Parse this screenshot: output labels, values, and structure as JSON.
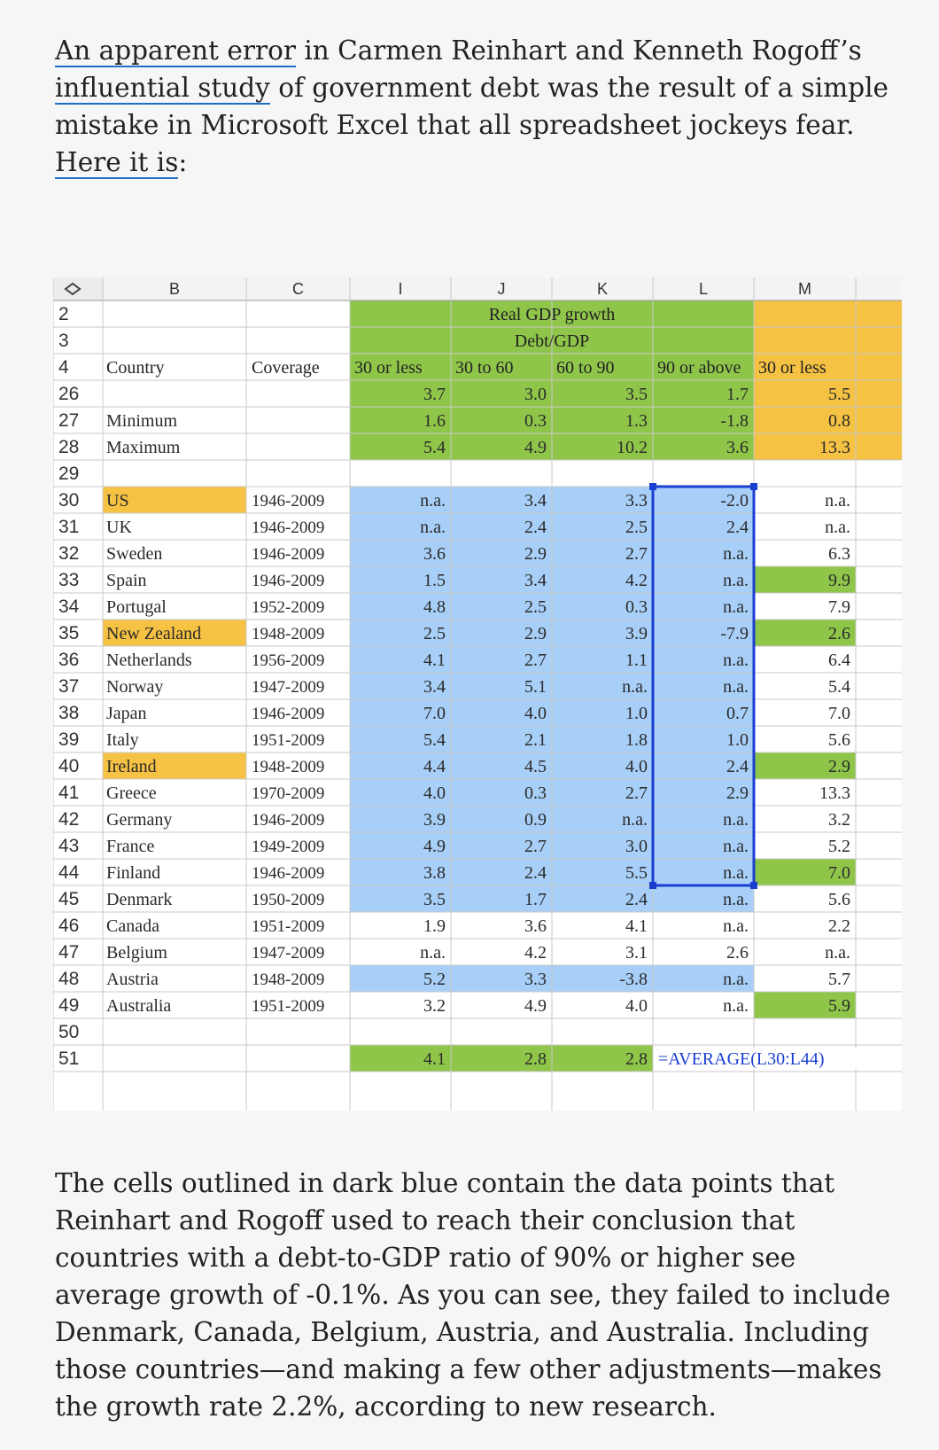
{
  "intro": {
    "link1": "An apparent error",
    "text1": " in Carmen Reinhart and Kenneth Rogoff’s ",
    "link2": "influential study",
    "text2": " of government debt was the result of a simple mistake in Microsoft Excel that all spreadsheet jockeys fear. ",
    "link3": "Here it is",
    "text3": ":"
  },
  "spreadsheet": {
    "column_headers": [
      "B",
      "C",
      "I",
      "J",
      "K",
      "L",
      "M"
    ],
    "title_line1": "Real GDP growth",
    "title_line2": "Debt/GDP",
    "header_row": {
      "row_num": "4",
      "country": "Country",
      "coverage": "Coverage",
      "buckets": [
        "30 or less",
        "30 to 60",
        "60 to 90",
        "90 or above",
        "30 or less"
      ]
    },
    "summary_rows": [
      {
        "row_num": "26",
        "label": "",
        "values": [
          "3.7",
          "3.0",
          "3.5",
          "1.7",
          "5.5"
        ]
      },
      {
        "row_num": "27",
        "label": "Minimum",
        "values": [
          "1.6",
          "0.3",
          "1.3",
          "-1.8",
          "0.8"
        ]
      },
      {
        "row_num": "28",
        "label": "Maximum",
        "values": [
          "5.4",
          "4.9",
          "10.2",
          "3.6",
          "13.3"
        ]
      }
    ],
    "country_rows": [
      {
        "row_num": "30",
        "country": "US",
        "coverage": "1946-2009",
        "values": [
          "n.a.",
          "3.4",
          "3.3",
          "-2.0",
          "n.a."
        ]
      },
      {
        "row_num": "31",
        "country": "UK",
        "coverage": "1946-2009",
        "values": [
          "n.a.",
          "2.4",
          "2.5",
          "2.4",
          "n.a."
        ]
      },
      {
        "row_num": "32",
        "country": "Sweden",
        "coverage": "1946-2009",
        "values": [
          "3.6",
          "2.9",
          "2.7",
          "n.a.",
          "6.3"
        ]
      },
      {
        "row_num": "33",
        "country": "Spain",
        "coverage": "1946-2009",
        "values": [
          "1.5",
          "3.4",
          "4.2",
          "n.a.",
          "9.9"
        ]
      },
      {
        "row_num": "34",
        "country": "Portugal",
        "coverage": "1952-2009",
        "values": [
          "4.8",
          "2.5",
          "0.3",
          "n.a.",
          "7.9"
        ]
      },
      {
        "row_num": "35",
        "country": "New Zealand",
        "coverage": "1948-2009",
        "values": [
          "2.5",
          "2.9",
          "3.9",
          "-7.9",
          "2.6"
        ]
      },
      {
        "row_num": "36",
        "country": "Netherlands",
        "coverage": "1956-2009",
        "values": [
          "4.1",
          "2.7",
          "1.1",
          "n.a.",
          "6.4"
        ]
      },
      {
        "row_num": "37",
        "country": "Norway",
        "coverage": "1947-2009",
        "values": [
          "3.4",
          "5.1",
          "n.a.",
          "n.a.",
          "5.4"
        ]
      },
      {
        "row_num": "38",
        "country": "Japan",
        "coverage": "1946-2009",
        "values": [
          "7.0",
          "4.0",
          "1.0",
          "0.7",
          "7.0"
        ]
      },
      {
        "row_num": "39",
        "country": "Italy",
        "coverage": "1951-2009",
        "values": [
          "5.4",
          "2.1",
          "1.8",
          "1.0",
          "5.6"
        ]
      },
      {
        "row_num": "40",
        "country": "Ireland",
        "coverage": "1948-2009",
        "values": [
          "4.4",
          "4.5",
          "4.0",
          "2.4",
          "2.9"
        ]
      },
      {
        "row_num": "41",
        "country": "Greece",
        "coverage": "1970-2009",
        "values": [
          "4.0",
          "0.3",
          "2.7",
          "2.9",
          "13.3"
        ]
      },
      {
        "row_num": "42",
        "country": "Germany",
        "coverage": "1946-2009",
        "values": [
          "3.9",
          "0.9",
          "n.a.",
          "n.a.",
          "3.2"
        ]
      },
      {
        "row_num": "43",
        "country": "France",
        "coverage": "1949-2009",
        "values": [
          "4.9",
          "2.7",
          "3.0",
          "n.a.",
          "5.2"
        ]
      },
      {
        "row_num": "44",
        "country": "Finland",
        "coverage": "1946-2009",
        "values": [
          "3.8",
          "2.4",
          "5.5",
          "n.a.",
          "7.0"
        ]
      },
      {
        "row_num": "45",
        "country": "Denmark",
        "coverage": "1950-2009",
        "values": [
          "3.5",
          "1.7",
          "2.4",
          "n.a.",
          "5.6"
        ]
      },
      {
        "row_num": "46",
        "country": "Canada",
        "coverage": "1951-2009",
        "values": [
          "1.9",
          "3.6",
          "4.1",
          "n.a.",
          "2.2"
        ]
      },
      {
        "row_num": "47",
        "country": "Belgium",
        "coverage": "1947-2009",
        "values": [
          "n.a.",
          "4.2",
          "3.1",
          "2.6",
          "n.a."
        ]
      },
      {
        "row_num": "48",
        "country": "Austria",
        "coverage": "1948-2009",
        "values": [
          "5.2",
          "3.3",
          "-3.8",
          "n.a.",
          "5.7"
        ]
      },
      {
        "row_num": "49",
        "country": "Australia",
        "coverage": "1951-2009",
        "values": [
          "3.2",
          "4.9",
          "4.0",
          "n.a.",
          "5.9"
        ]
      }
    ],
    "blank_rows": [
      "2",
      "3",
      "29",
      "50"
    ],
    "average_row": {
      "row_num": "51",
      "values": [
        "4.1",
        "2.8",
        "2.8"
      ],
      "formula": "=AVERAGE(L30:L44)"
    },
    "colors": {
      "green": "#8fc64a",
      "orange": "#f6c244",
      "blue": "#a8cff7",
      "selection": "#1a3fd0"
    }
  },
  "outro": {
    "text": "The cells outlined in dark blue contain the data points that Reinhart and Rogoff used to reach their conclusion that countries with a debt-to-GDP ratio of 90% or higher see average growth of -0.1%. As you can see, they failed to include Denmark, Canada, Belgium, Austria, and Australia. Including those countries—and making a few other adjustments—makes the growth rate 2.2%, according to new research."
  }
}
